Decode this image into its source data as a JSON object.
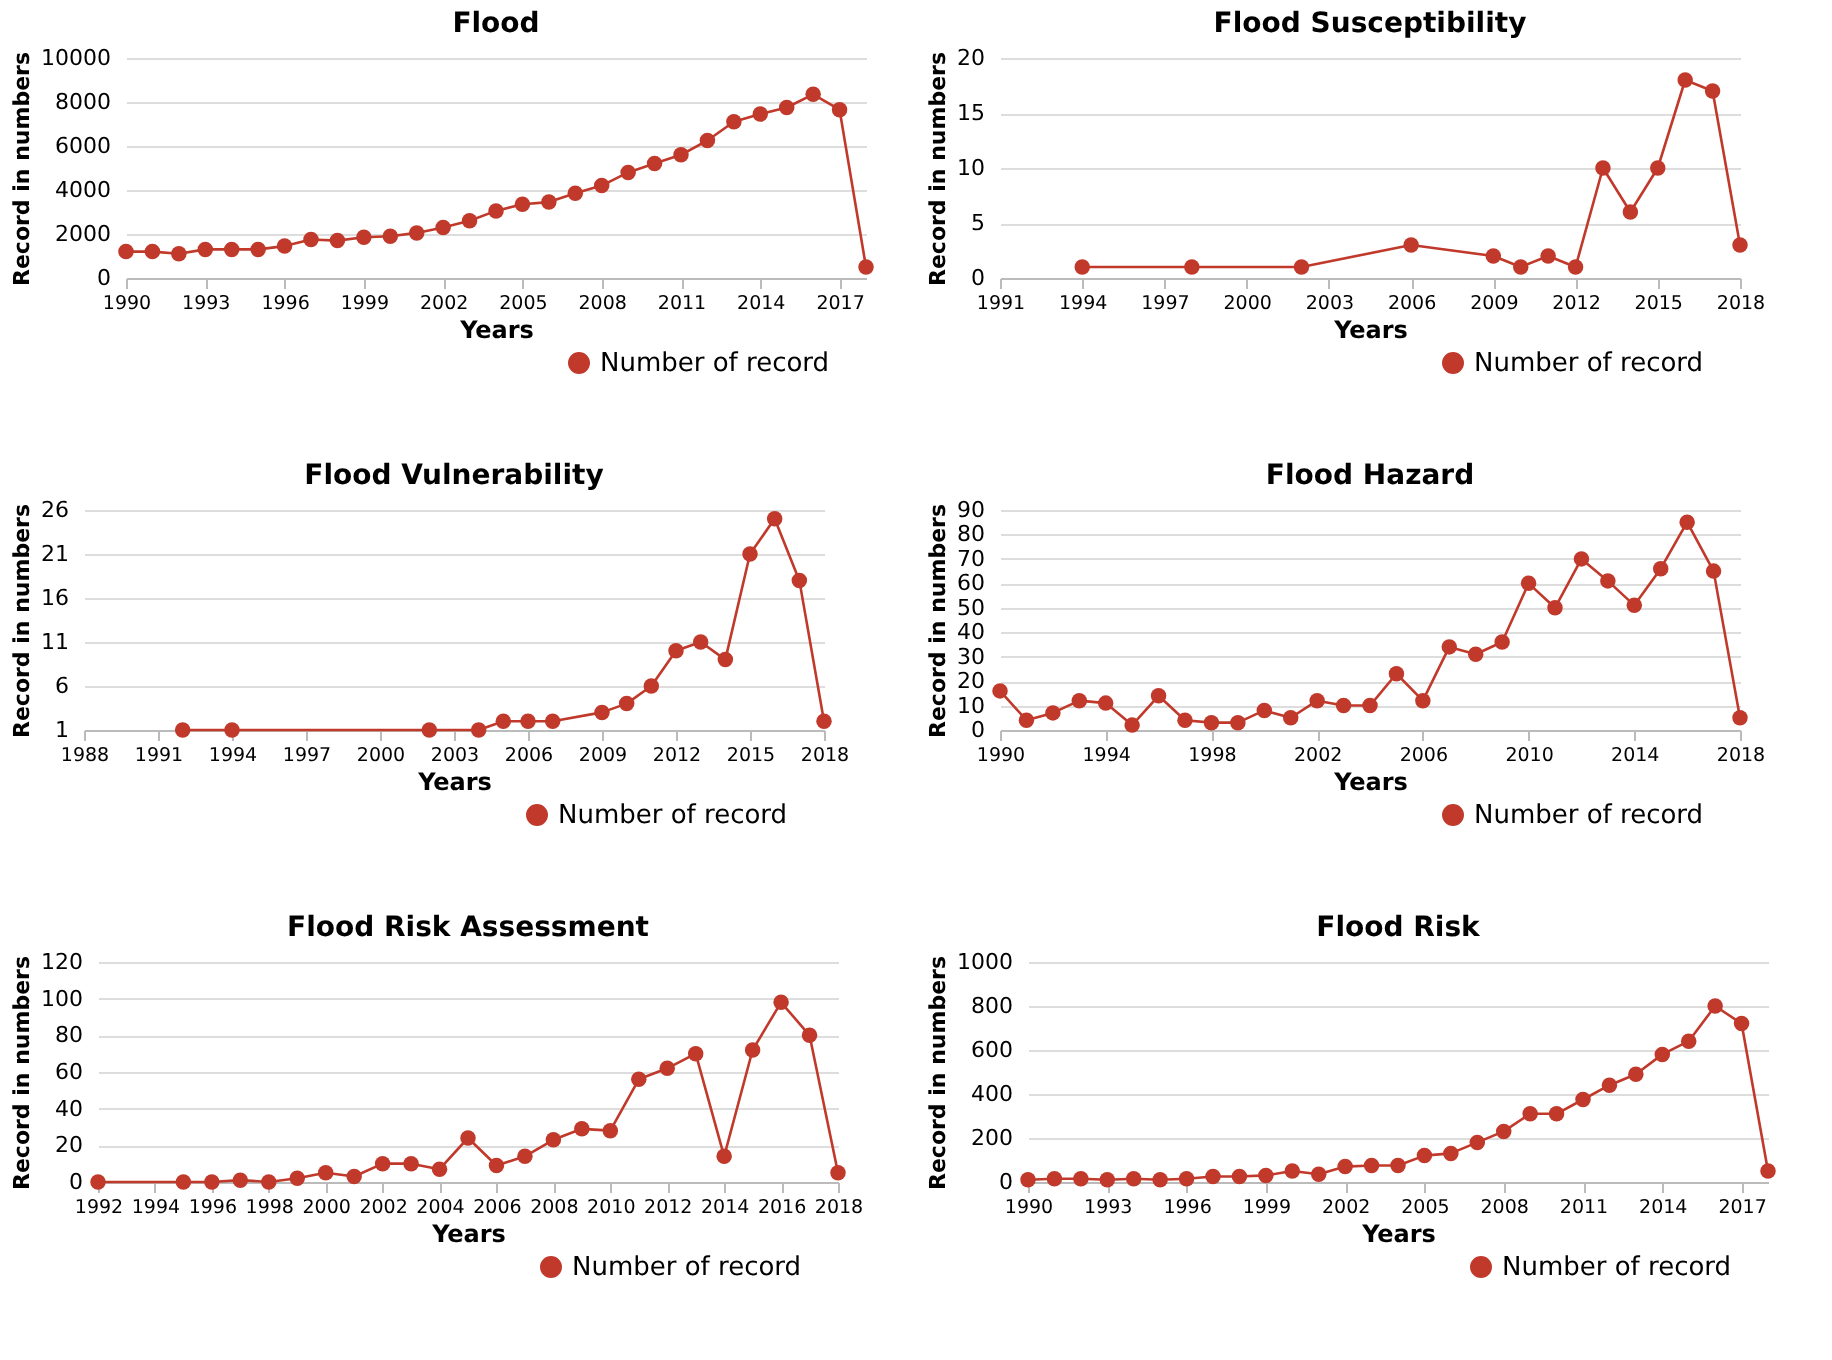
{
  "chart_data": [
    {
      "type": "line",
      "title": "Flood",
      "xlabel": "Years",
      "ylabel": "Record in numbers",
      "legend": "bottom right",
      "grid": "y",
      "marker": "circle",
      "xlim": [
        1990,
        2018
      ],
      "xticks": [
        1990,
        1993,
        1996,
        1999,
        2002,
        2005,
        2008,
        2011,
        2014,
        2017
      ],
      "ylim": [
        0,
        10000
      ],
      "yticks": [
        0,
        2000,
        4000,
        6000,
        8000,
        10000
      ],
      "x": [
        1990,
        1991,
        1992,
        1993,
        1994,
        1995,
        1996,
        1997,
        1998,
        1999,
        2000,
        2001,
        2002,
        2003,
        2004,
        2005,
        2006,
        2007,
        2008,
        2009,
        2010,
        2011,
        2012,
        2013,
        2014,
        2015,
        2016,
        2017,
        2018
      ],
      "series": [
        {
          "name": "Number of record",
          "color": "#c0392b",
          "values": [
            1200,
            1200,
            1100,
            1300,
            1300,
            1300,
            1450,
            1750,
            1700,
            1850,
            1900,
            2050,
            2300,
            2600,
            3050,
            3350,
            3450,
            3850,
            4200,
            4800,
            5200,
            5600,
            6250,
            7100,
            7450,
            7750,
            8350,
            7650,
            500
          ]
        }
      ]
    },
    {
      "type": "line",
      "title": "Flood Susceptibility",
      "xlabel": "Years",
      "ylabel": "Record in numbers",
      "legend": "bottom right",
      "grid": "y",
      "marker": "circle",
      "xlim": [
        1991,
        2018
      ],
      "xticks": [
        1991,
        1994,
        1997,
        2000,
        2003,
        2006,
        2009,
        2012,
        2015,
        2018
      ],
      "ylim": [
        0,
        20
      ],
      "yticks": [
        0,
        5,
        10,
        15,
        20
      ],
      "x": [
        1994,
        1998,
        2002,
        2006,
        2009,
        2010,
        2011,
        2012,
        2013,
        2014,
        2015,
        2016,
        2017,
        2018
      ],
      "series": [
        {
          "name": "Number of record",
          "color": "#c0392b",
          "values": [
            1,
            1,
            1,
            3,
            2,
            1,
            2,
            1,
            10,
            6,
            10,
            18,
            17,
            3
          ]
        }
      ]
    },
    {
      "type": "line",
      "title": "Flood Vulnerability",
      "xlabel": "Years",
      "ylabel": "Record in numbers",
      "legend": "bottom right",
      "grid": "y",
      "marker": "circle",
      "xlim": [
        1988,
        2018
      ],
      "xticks": [
        1988,
        1991,
        1994,
        1997,
        2000,
        2003,
        2006,
        2009,
        2012,
        2015,
        2018
      ],
      "ylim": [
        1,
        26
      ],
      "yticks": [
        1,
        6,
        11,
        16,
        21,
        26
      ],
      "x": [
        1992,
        1994,
        2002,
        2004,
        2005,
        2006,
        2007,
        2009,
        2010,
        2011,
        2012,
        2013,
        2014,
        2015,
        2016,
        2017,
        2018
      ],
      "series": [
        {
          "name": "Number of record",
          "color": "#c0392b",
          "values": [
            1,
            1,
            1,
            1,
            2,
            2,
            2,
            3,
            4,
            6,
            10,
            11,
            9,
            21,
            25,
            18,
            2
          ]
        }
      ]
    },
    {
      "type": "line",
      "title": "Flood Hazard",
      "xlabel": "Years",
      "ylabel": "Record in numbers",
      "legend": "bottom right",
      "grid": "y",
      "marker": "circle",
      "xlim": [
        1990,
        2018
      ],
      "xticks": [
        1990,
        1994,
        1998,
        2002,
        2006,
        2010,
        2014,
        2018
      ],
      "ylim": [
        0,
        90
      ],
      "yticks": [
        0,
        10,
        20,
        30,
        40,
        50,
        60,
        70,
        80,
        90
      ],
      "x": [
        1990,
        1991,
        1992,
        1993,
        1994,
        1995,
        1996,
        1997,
        1998,
        1999,
        2000,
        2001,
        2002,
        2003,
        2004,
        2005,
        2006,
        2007,
        2008,
        2009,
        2010,
        2011,
        2012,
        2013,
        2014,
        2015,
        2016,
        2017,
        2018
      ],
      "series": [
        {
          "name": "Number of record",
          "color": "#c0392b",
          "values": [
            16,
            4,
            7,
            12,
            11,
            2,
            14,
            4,
            3,
            3,
            8,
            5,
            12,
            10,
            10,
            23,
            12,
            34,
            31,
            36,
            60,
            50,
            70,
            61,
            51,
            66,
            85,
            65,
            5
          ]
        }
      ]
    },
    {
      "type": "line",
      "title": "Flood Risk Assessment",
      "xlabel": "Years",
      "ylabel": "Record in numbers",
      "legend": "bottom right",
      "grid": "y",
      "marker": "circle",
      "xlim": [
        1992,
        2018
      ],
      "xticks": [
        1992,
        1994,
        1996,
        1998,
        2000,
        2002,
        2004,
        2006,
        2008,
        2010,
        2012,
        2014,
        2016,
        2018
      ],
      "ylim": [
        0,
        120
      ],
      "yticks": [
        0,
        20,
        40,
        60,
        80,
        100,
        120
      ],
      "x": [
        1992,
        1995,
        1996,
        1997,
        1998,
        1999,
        2000,
        2001,
        2002,
        2003,
        2004,
        2005,
        2006,
        2007,
        2008,
        2009,
        2010,
        2011,
        2012,
        2013,
        2014,
        2015,
        2016,
        2017,
        2018
      ],
      "series": [
        {
          "name": "Number of record",
          "color": "#c0392b",
          "values": [
            0,
            0,
            0,
            1,
            0,
            2,
            5,
            3,
            10,
            10,
            7,
            24,
            9,
            14,
            23,
            29,
            28,
            56,
            62,
            70,
            14,
            72,
            98,
            80,
            5
          ]
        }
      ]
    },
    {
      "type": "line",
      "title": "Flood Risk",
      "xlabel": "Years",
      "ylabel": "Record in numbers",
      "legend": "bottom right",
      "grid": "y",
      "marker": "circle",
      "xlim": [
        1990,
        2018
      ],
      "xticks": [
        1990,
        1993,
        1996,
        1999,
        2002,
        2005,
        2008,
        2011,
        2014,
        2017
      ],
      "ylim": [
        0,
        1000
      ],
      "yticks": [
        0,
        200,
        400,
        600,
        800,
        1000
      ],
      "x": [
        1990,
        1991,
        1992,
        1993,
        1994,
        1995,
        1996,
        1997,
        1998,
        1999,
        2000,
        2001,
        2002,
        2003,
        2004,
        2005,
        2006,
        2007,
        2008,
        2009,
        2010,
        2011,
        2012,
        2013,
        2014,
        2015,
        2016,
        2017,
        2018
      ],
      "series": [
        {
          "name": "Number of record",
          "color": "#c0392b",
          "values": [
            10,
            15,
            15,
            10,
            15,
            10,
            15,
            25,
            25,
            30,
            50,
            35,
            70,
            75,
            75,
            120,
            130,
            180,
            230,
            310,
            310,
            375,
            440,
            490,
            580,
            640,
            800,
            720,
            50
          ]
        }
      ]
    }
  ]
}
